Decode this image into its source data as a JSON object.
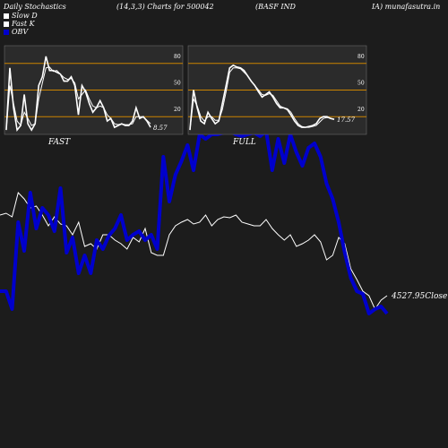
{
  "header": {
    "title": "Daily Stochastics",
    "params": "(14,3,3) Charts for 500042",
    "company": "(BASF IND",
    "site": "IA) munafasutra.in"
  },
  "legend": [
    {
      "label": "Slow  D",
      "color": "#ffffff"
    },
    {
      "label": "Fast K",
      "color": "#ffffff"
    },
    {
      "label": "OBV",
      "color": "#0000cc"
    }
  ],
  "colors": {
    "background": "#1c1c1c",
    "panel": "#2b2b2b",
    "level_line": "#cc8400",
    "obv": "#0000cc",
    "close": "#ffffff"
  },
  "chart_data": [
    {
      "type": "line",
      "title": "FAST",
      "ylim": [
        0,
        100
      ],
      "levels": [
        80,
        50,
        20
      ],
      "level_labels": [
        "80",
        "50",
        "20"
      ],
      "last_value_label": "8.57",
      "series": [
        {
          "name": "Fast K",
          "values": [
            5,
            75,
            30,
            5,
            10,
            45,
            12,
            5,
            12,
            55,
            65,
            88,
            72,
            72,
            70,
            68,
            60,
            60,
            65,
            55,
            22,
            55,
            48,
            35,
            25,
            30,
            38,
            30,
            15,
            18,
            8,
            10,
            12,
            10,
            10,
            15,
            30,
            18,
            20,
            15,
            8
          ]
        },
        {
          "name": "Slow  D",
          "values": [
            5,
            55,
            35,
            15,
            10,
            25,
            18,
            10,
            12,
            40,
            58,
            75,
            76,
            71,
            72,
            68,
            64,
            62,
            63,
            58,
            40,
            45,
            50,
            40,
            32,
            30,
            32,
            30,
            22,
            18,
            12,
            11,
            12,
            11,
            11,
            12,
            20,
            20,
            20,
            16,
            12
          ]
        }
      ]
    },
    {
      "type": "line",
      "title": "FULL",
      "ylim": [
        0,
        100
      ],
      "levels": [
        80,
        50,
        20
      ],
      "level_labels": [
        "80",
        "50",
        "20"
      ],
      "last_value_label": "17.57",
      "series": [
        {
          "name": "Fast K",
          "values": [
            5,
            50,
            30,
            15,
            12,
            25,
            18,
            12,
            15,
            35,
            55,
            75,
            78,
            76,
            75,
            72,
            66,
            60,
            55,
            48,
            42,
            45,
            48,
            42,
            35,
            30,
            30,
            28,
            22,
            15,
            10,
            8,
            8,
            9,
            10,
            12,
            18,
            20,
            20,
            18,
            17
          ]
        },
        {
          "name": "Slow  D",
          "values": [
            5,
            40,
            32,
            20,
            15,
            20,
            20,
            16,
            16,
            28,
            48,
            70,
            75,
            75,
            74,
            70,
            66,
            60,
            55,
            50,
            45,
            44,
            46,
            44,
            38,
            32,
            30,
            29,
            25,
            18,
            12,
            9,
            8,
            8,
            9,
            10,
            14,
            18,
            19,
            18,
            17
          ]
        }
      ]
    },
    {
      "type": "line",
      "last_close_label": "4527.95",
      "close_word": "Close",
      "series": [
        {
          "name": "OBV",
          "values": [
            325,
            325,
            345,
            248,
            280,
            215,
            255,
            232,
            240,
            258,
            210,
            282,
            265,
            305,
            285,
            305,
            268,
            278,
            263,
            255,
            240,
            268,
            262,
            258,
            268,
            262,
            278,
            175,
            225,
            195,
            180,
            162,
            190,
            150,
            155,
            150,
            150,
            148,
            146,
            150,
            152,
            150,
            148,
            152,
            146,
            190,
            155,
            182,
            150,
            170,
            185,
            165,
            160,
            175,
            205,
            222,
            248,
            282,
            310,
            325,
            328,
            350,
            345,
            342,
            350
          ]
        },
        {
          "name": "Close",
          "values": [
            240,
            238,
            242,
            215,
            222,
            232,
            230,
            240,
            252,
            242,
            250,
            252,
            262,
            248,
            275,
            272,
            278,
            262,
            262,
            268,
            272,
            278,
            265,
            270,
            255,
            282,
            285,
            285,
            262,
            252,
            248,
            245,
            250,
            248,
            240,
            252,
            245,
            242,
            243,
            240,
            248,
            250,
            252,
            252,
            245,
            255,
            262,
            268,
            262,
            275,
            272,
            268,
            262,
            270,
            290,
            285,
            265,
            272,
            300,
            312,
            325,
            330,
            345,
            335,
            330
          ]
        }
      ]
    }
  ]
}
